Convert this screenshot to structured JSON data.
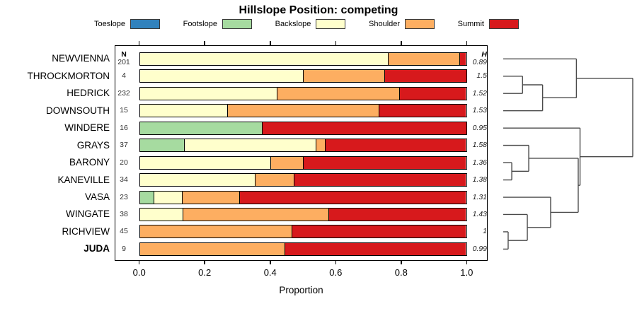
{
  "title": "Hillslope Position: competing",
  "legend": [
    {
      "label": "Toeslope",
      "color": "#3182BD"
    },
    {
      "label": "Footslope",
      "color": "#A6DBA0"
    },
    {
      "label": "Backslope",
      "color": "#FFFFCC"
    },
    {
      "label": "Shoulder",
      "color": "#FDAE61"
    },
    {
      "label": "Summit",
      "color": "#D7191C"
    }
  ],
  "columns": {
    "n_header": "N",
    "h_header": "H"
  },
  "axis": {
    "label": "Proportion",
    "ticks": [
      "0.0",
      "0.2",
      "0.4",
      "0.6",
      "0.8",
      "1.0"
    ]
  },
  "chart_data": {
    "type": "bar",
    "orientation": "horizontal",
    "stacked": true,
    "title": "Hillslope Position: competing",
    "xlabel": "Proportion",
    "xlim": [
      0,
      1
    ],
    "categories": [
      "Toeslope",
      "Footslope",
      "Backslope",
      "Shoulder",
      "Summit"
    ],
    "colors": {
      "Toeslope": "#3182BD",
      "Footslope": "#A6DBA0",
      "Backslope": "#FFFFCC",
      "Shoulder": "#FDAE61",
      "Summit": "#D7191C"
    },
    "rows": [
      {
        "label": "NEWVIENNA",
        "n": "201",
        "h": "0.89",
        "bold": false,
        "segments": [
          [
            "Backslope",
            0.76
          ],
          [
            "Shoulder",
            0.22
          ],
          [
            "Summit",
            0.02
          ]
        ]
      },
      {
        "label": "THROCKMORTON",
        "n": "4",
        "h": "1.5",
        "bold": false,
        "segments": [
          [
            "Backslope",
            0.5
          ],
          [
            "Shoulder",
            0.25
          ],
          [
            "Summit",
            0.25
          ]
        ]
      },
      {
        "label": "HEDRICK",
        "n": "232",
        "h": "1.52",
        "bold": false,
        "segments": [
          [
            "Backslope",
            0.42
          ],
          [
            "Shoulder",
            0.375
          ],
          [
            "Summit",
            0.205
          ]
        ]
      },
      {
        "label": "DOWNSOUTH",
        "n": "15",
        "h": "1.53",
        "bold": false,
        "segments": [
          [
            "Backslope",
            0.267
          ],
          [
            "Shoulder",
            0.466
          ],
          [
            "Summit",
            0.267
          ]
        ]
      },
      {
        "label": "WINDERE",
        "n": "16",
        "h": "0.95",
        "bold": false,
        "segments": [
          [
            "Footslope",
            0.375
          ],
          [
            "Summit",
            0.625
          ]
        ]
      },
      {
        "label": "GRAYS",
        "n": "37",
        "h": "1.58",
        "bold": false,
        "segments": [
          [
            "Footslope",
            0.135
          ],
          [
            "Backslope",
            0.405
          ],
          [
            "Shoulder",
            0.027
          ],
          [
            "Summit",
            0.433
          ]
        ]
      },
      {
        "label": "BARONY",
        "n": "20",
        "h": "1.36",
        "bold": false,
        "segments": [
          [
            "Backslope",
            0.4
          ],
          [
            "Shoulder",
            0.1
          ],
          [
            "Summit",
            0.5
          ]
        ]
      },
      {
        "label": "KANEVILLE",
        "n": "34",
        "h": "1.38",
        "bold": false,
        "segments": [
          [
            "Backslope",
            0.353
          ],
          [
            "Shoulder",
            0.118
          ],
          [
            "Summit",
            0.529
          ]
        ]
      },
      {
        "label": "VASA",
        "n": "23",
        "h": "1.31",
        "bold": false,
        "segments": [
          [
            "Footslope",
            0.043
          ],
          [
            "Backslope",
            0.087
          ],
          [
            "Shoulder",
            0.174
          ],
          [
            "Summit",
            0.696
          ]
        ]
      },
      {
        "label": "WINGATE",
        "n": "38",
        "h": "1.43",
        "bold": false,
        "segments": [
          [
            "Backslope",
            0.132
          ],
          [
            "Shoulder",
            0.447
          ],
          [
            "Summit",
            0.421
          ]
        ]
      },
      {
        "label": "RICHVIEW",
        "n": "45",
        "h": "1",
        "bold": false,
        "segments": [
          [
            "Shoulder",
            0.465
          ],
          [
            "Summit",
            0.535
          ]
        ]
      },
      {
        "label": "JUDA",
        "n": "9",
        "h": "0.99",
        "bold": true,
        "segments": [
          [
            "Shoulder",
            0.444
          ],
          [
            "Summit",
            0.556
          ]
        ]
      }
    ]
  },
  "dendrogram": {
    "note": "leaves L0-L11 map to chart_data.rows by index; h = merge height fraction of dendrogram width",
    "merges": [
      {
        "id": "M1",
        "a": "L1",
        "b": "L2",
        "h": 0.149
      },
      {
        "id": "M2",
        "a": "M1",
        "b": "L3",
        "h": 0.304
      },
      {
        "id": "M3",
        "a": "L0",
        "b": "M2",
        "h": 0.565
      },
      {
        "id": "M4",
        "a": "L6",
        "b": "L7",
        "h": 0.066
      },
      {
        "id": "M5",
        "a": "L5",
        "b": "M4",
        "h": 0.197
      },
      {
        "id": "M6",
        "a": "L10",
        "b": "L11",
        "h": 0.038
      },
      {
        "id": "M7",
        "a": "L9",
        "b": "M6",
        "h": 0.186
      },
      {
        "id": "M8",
        "a": "L8",
        "b": "M7",
        "h": 0.366
      },
      {
        "id": "M9",
        "a": "M5",
        "b": "M8",
        "h": 0.579
      },
      {
        "id": "M10",
        "a": "L4",
        "b": "M9",
        "h": 0.593
      },
      {
        "id": "M11",
        "a": "M3",
        "b": "M10",
        "h": 1.0
      }
    ]
  }
}
